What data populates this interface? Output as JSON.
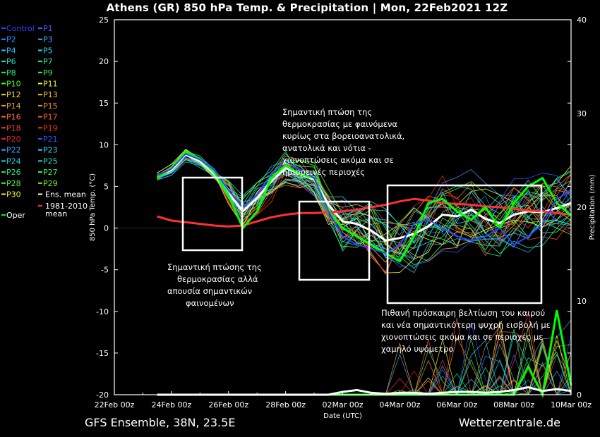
{
  "title": "Athens  (GR)  850 hPa Temp. & Precipitation | Mon, 22Feb2021 12Z",
  "footer_left": "GFS Ensemble, 38N, 23.5E",
  "footer_right": "Wetterzentrale.de",
  "colors": {
    "background": "#000000",
    "control": "#3040ff",
    "ens_mean": "#ffffff",
    "oper": "#00ff00",
    "climate_mean": "#ff3030",
    "annotation_box": "#ffffff"
  },
  "legend": {
    "items": [
      {
        "label": "Control",
        "color": "#3040ff"
      },
      {
        "label": "P1",
        "color": "#4060ff"
      },
      {
        "label": "P2",
        "color": "#3090ff"
      },
      {
        "label": "P3",
        "color": "#40a8ff"
      },
      {
        "label": "P4",
        "color": "#30c0ff"
      },
      {
        "label": "P5",
        "color": "#20d8e0"
      },
      {
        "label": "P6",
        "color": "#20e0c0"
      },
      {
        "label": "P7",
        "color": "#20e8a0"
      },
      {
        "label": "P8",
        "color": "#20f080"
      },
      {
        "label": "P9",
        "color": "#30f060"
      },
      {
        "label": "P10",
        "color": "#40ff20"
      },
      {
        "label": "P11",
        "color": "#e8f040"
      },
      {
        "label": "P12",
        "color": "#f0e030"
      },
      {
        "label": "P13",
        "color": "#f0c030"
      },
      {
        "label": "P14",
        "color": "#f0a030"
      },
      {
        "label": "P15",
        "color": "#f08830"
      },
      {
        "label": "P16",
        "color": "#f07030"
      },
      {
        "label": "P17",
        "color": "#f05830"
      },
      {
        "label": "P18",
        "color": "#f04030"
      },
      {
        "label": "P19",
        "color": "#f03020"
      },
      {
        "label": "P20",
        "color": "#e02020"
      },
      {
        "label": "P21",
        "color": "#3050ff"
      },
      {
        "label": "P22",
        "color": "#30a0ff"
      },
      {
        "label": "P23",
        "color": "#30c8ff"
      },
      {
        "label": "P24",
        "color": "#20d0e8"
      },
      {
        "label": "P25",
        "color": "#20e0d0"
      },
      {
        "label": "P26",
        "color": "#20e890"
      },
      {
        "label": "P27",
        "color": "#30f070"
      },
      {
        "label": "P28",
        "color": "#50f040"
      },
      {
        "label": "P29",
        "color": "#70f030"
      },
      {
        "label": "P30",
        "color": "#f0f040"
      },
      {
        "label": "Ens. mean",
        "color": "#ffffff"
      },
      {
        "label": "Oper",
        "color": "#00ff00"
      },
      {
        "label": "1981-2010 mean",
        "color": "#ff3030"
      }
    ]
  },
  "annotations": [
    {
      "id": "box1",
      "text": "Σημαντική πτώσης της θερμοκρασίας αλλά απουσία σημαντικών φαινομένων"
    },
    {
      "id": "box2",
      "text": "Σημαντική πτώση της θερμοκρασίας με φαινόμενα κυρίως στα βορειοανατολικά, ανατολικά και νότια - χιονοπτώσεις ακόμα και σε ημιορεινές περιοχές"
    },
    {
      "id": "box3",
      "text": "Πιθανή πρόσκαιρη βελτίωση του καιρού και νέα σημαντικότερη ψυχρή εισβολή με χιονοπτώσεις ακόμα και σε περιοχές με χαμηλό υψόμετρο"
    }
  ],
  "chart_data": {
    "type": "line",
    "title": "Athens  (GR)  850 hPa Temp. & Precipitation | Mon, 22Feb2021 12Z",
    "xlabel": "Date (UTC)",
    "ylabel": "850 hPa Temp. (°C)",
    "y2label": "Precipitation (mm)",
    "xlim": [
      0,
      16
    ],
    "ylim": [
      -20,
      25
    ],
    "y2lim": [
      0,
      40
    ],
    "xticks": [
      "22Feb 00z",
      "24Feb 00z",
      "26Feb 00z",
      "28Feb 00z",
      "02Mar 00z",
      "04Mar 00z",
      "06Mar 00z",
      "08Mar 00z",
      "10Mar 00z"
    ],
    "yticks": [
      -20,
      -15,
      -10,
      -5,
      0,
      5,
      10,
      15,
      20,
      25
    ],
    "y2ticks": [
      0,
      10,
      20,
      30,
      40
    ],
    "x_unit": "days since 22Feb 00z",
    "x": [
      1.5,
      2,
      2.5,
      3,
      3.5,
      4,
      4.5,
      5,
      5.5,
      6,
      6.5,
      7,
      7.5,
      8,
      8.5,
      9,
      9.5,
      10,
      10.5,
      11,
      11.5,
      12,
      12.5,
      13,
      13.5,
      14,
      14.5,
      15,
      15.5,
      16
    ],
    "series": [
      {
        "name": "Ens. mean",
        "values": [
          6.2,
          7.0,
          8.8,
          8.0,
          6.5,
          4.2,
          2.0,
          3.6,
          5.6,
          7.2,
          6.5,
          5.8,
          2.8,
          0.8,
          0.5,
          -0.3,
          -1.5,
          -1.2,
          -0.7,
          0.2,
          1.6,
          1.4,
          2.2,
          1.1,
          0.6,
          1.6,
          2.0,
          1.9,
          2.4,
          3.0
        ]
      },
      {
        "name": "1981-2010 mean",
        "values": [
          1.4,
          0.9,
          0.7,
          0.5,
          0.3,
          0.2,
          0.3,
          0.8,
          1.3,
          1.6,
          1.8,
          1.8,
          1.9,
          2.0,
          2.2,
          2.5,
          2.8,
          3.2,
          3.5,
          3.3,
          3.0,
          2.9,
          2.8,
          2.6,
          2.5,
          2.3,
          2.1,
          2.0,
          1.8,
          1.6
        ]
      },
      {
        "name": "Oper",
        "values": [
          6.0,
          7.2,
          9.2,
          8.3,
          6.7,
          4.0,
          0.0,
          2.0,
          6.0,
          7.5,
          6.5,
          6.0,
          2.0,
          0.0,
          -1.0,
          -2.0,
          -3.0,
          -4.0,
          -1.0,
          3.0,
          3.5,
          2.0,
          1.0,
          2.5,
          0.0,
          3.0,
          5.0,
          6.0,
          3.0,
          1.5
        ]
      },
      {
        "name": "Control",
        "values": [
          6.3,
          7.1,
          8.9,
          8.2,
          7.0,
          4.5,
          2.5,
          4.0,
          6.5,
          8.0,
          7.0,
          6.0,
          2.0,
          -1.0,
          -2.0,
          -2.5,
          -3.0,
          -2.0,
          0.5,
          1.0,
          0.0,
          -1.0,
          -1.5,
          -1.0,
          0.0,
          -2.0,
          -1.0,
          0.5,
          3.5,
          4.5
        ]
      }
    ],
    "precipitation_mm": [
      {
        "name": "Oper",
        "values": [
          0,
          0,
          0,
          0,
          0,
          0,
          0,
          0,
          0,
          0,
          0,
          0,
          0,
          0,
          0,
          0,
          0,
          0,
          0,
          0,
          0,
          0,
          0,
          0,
          0,
          0,
          3,
          0,
          9,
          1
        ]
      },
      {
        "name": "Ens. mean",
        "values": [
          0,
          0,
          0,
          0,
          0,
          0,
          0,
          0,
          0,
          0,
          0,
          0,
          0,
          0.3,
          0.5,
          0.2,
          0.1,
          0.2,
          0.2,
          0.1,
          0.2,
          0.3,
          0.3,
          0.2,
          0.3,
          0.5,
          0.8,
          0.4,
          0.6,
          0.4
        ]
      }
    ],
    "grid": false,
    "legend_position": "left"
  }
}
